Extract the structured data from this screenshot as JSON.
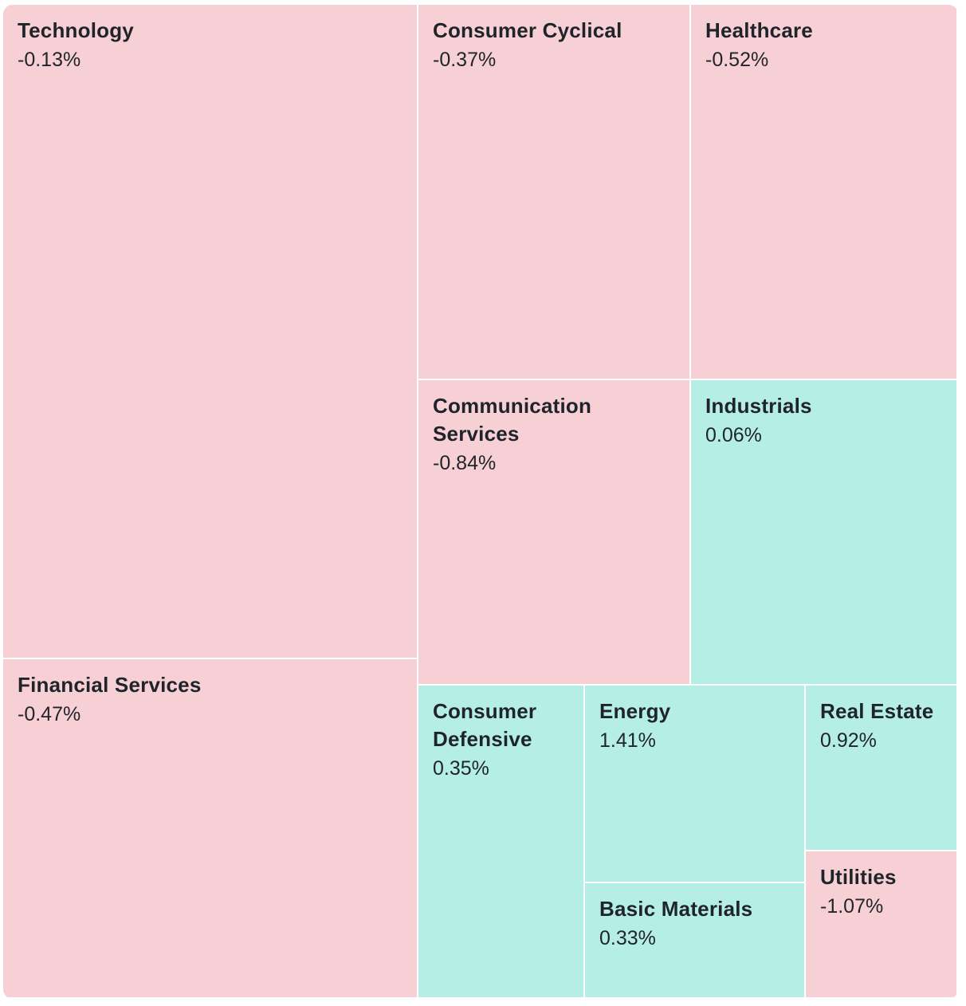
{
  "chart_data": {
    "type": "treemap",
    "colors": {
      "negative": "#f7d0d5",
      "positive": "#b5eee5"
    },
    "sectors": [
      {
        "name": "Technology",
        "change_pct": -0.13,
        "label": "-0.13%"
      },
      {
        "name": "Financial Services",
        "change_pct": -0.47,
        "label": "-0.47%"
      },
      {
        "name": "Consumer Cyclical",
        "change_pct": -0.37,
        "label": "-0.37%"
      },
      {
        "name": "Healthcare",
        "change_pct": -0.52,
        "label": "-0.52%"
      },
      {
        "name": "Communication Services",
        "change_pct": -0.84,
        "label": "-0.84%"
      },
      {
        "name": "Industrials",
        "change_pct": 0.06,
        "label": "0.06%"
      },
      {
        "name": "Consumer Defensive",
        "change_pct": 0.35,
        "label": "0.35%"
      },
      {
        "name": "Energy",
        "change_pct": 1.41,
        "label": "1.41%"
      },
      {
        "name": "Basic Materials",
        "change_pct": 0.33,
        "label": "0.33%"
      },
      {
        "name": "Real Estate",
        "change_pct": 0.92,
        "label": "0.92%"
      },
      {
        "name": "Utilities",
        "change_pct": -1.07,
        "label": "-1.07%"
      }
    ]
  }
}
